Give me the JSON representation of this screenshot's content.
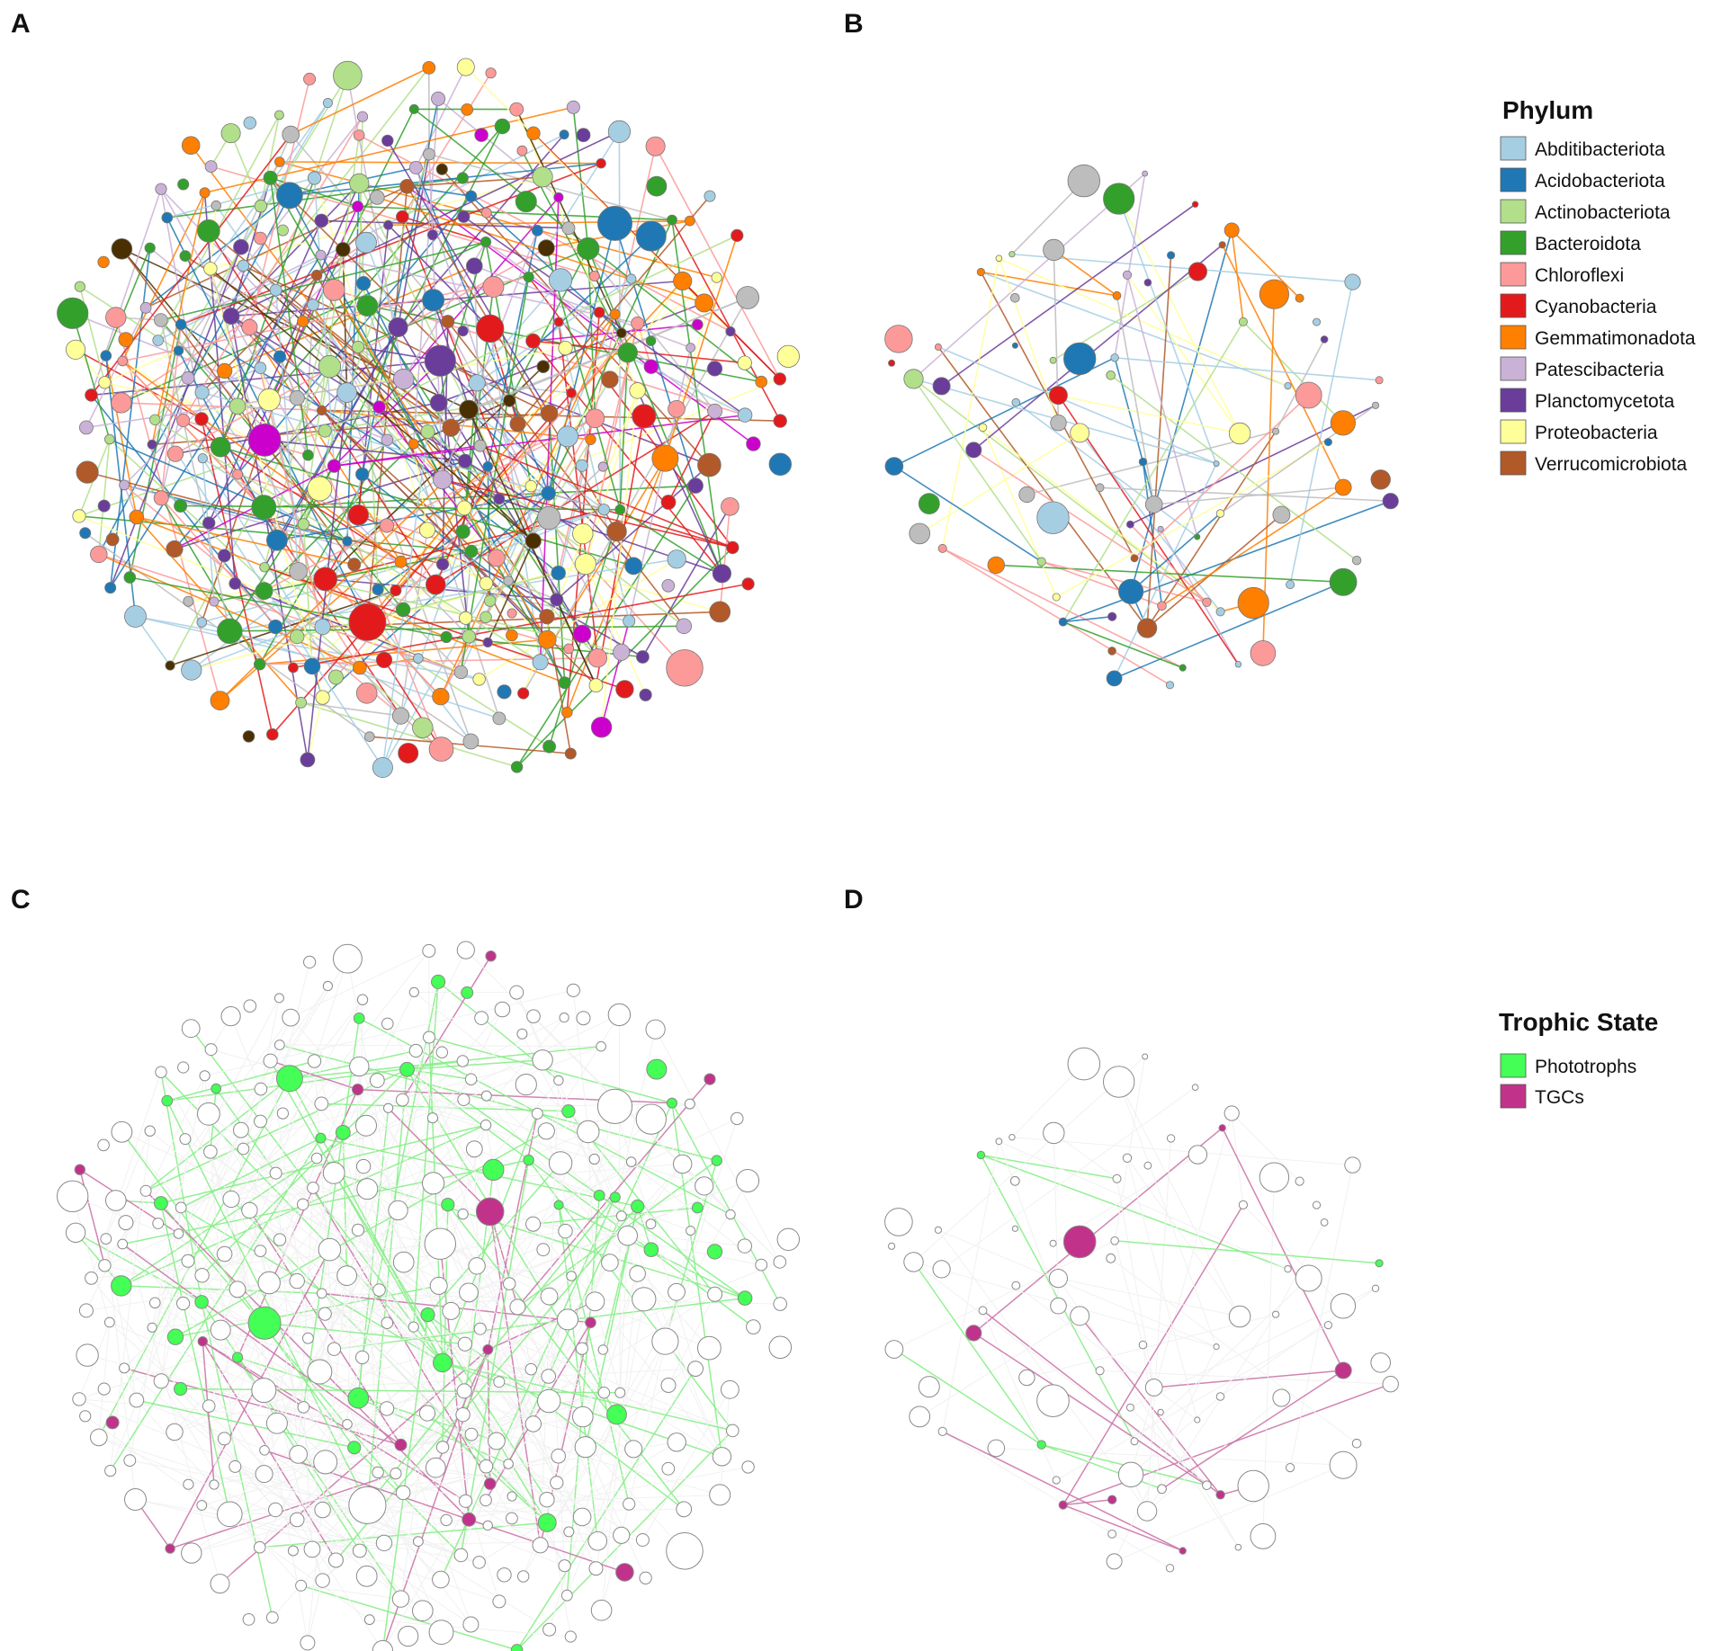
{
  "panels": [
    {
      "id": "A",
      "label": "A"
    },
    {
      "id": "B",
      "label": "B"
    },
    {
      "id": "C",
      "label": "C"
    },
    {
      "id": "D",
      "label": "D"
    }
  ],
  "legend_phylum": {
    "title": "Phylum",
    "items": [
      {
        "label": "Abditibacteriota",
        "color": "#a6cee3"
      },
      {
        "label": "Acidobacteriota",
        "color": "#1f78b4"
      },
      {
        "label": "Actinobacteriota",
        "color": "#b2df8a"
      },
      {
        "label": "Bacteroidota",
        "color": "#33a02c"
      },
      {
        "label": "Chloroflexi",
        "color": "#fb9a99"
      },
      {
        "label": "Cyanobacteria",
        "color": "#e31a1c"
      },
      {
        "label": "Gemmatimonadota",
        "color": "#ff7f00"
      },
      {
        "label": "Patescibacteria",
        "color": "#cab2d6"
      },
      {
        "label": "Planctomycetota",
        "color": "#6a3d9a"
      },
      {
        "label": "Proteobacteria",
        "color": "#ffff99"
      },
      {
        "label": "Verrucomicrobiota",
        "color": "#b15928"
      }
    ]
  },
  "legend_trophic": {
    "title": "Trophic State",
    "items": [
      {
        "label": "Phototrophs",
        "color": "#44ff55"
      },
      {
        "label": "TGCs",
        "color": "#c1338a"
      }
    ]
  }
}
